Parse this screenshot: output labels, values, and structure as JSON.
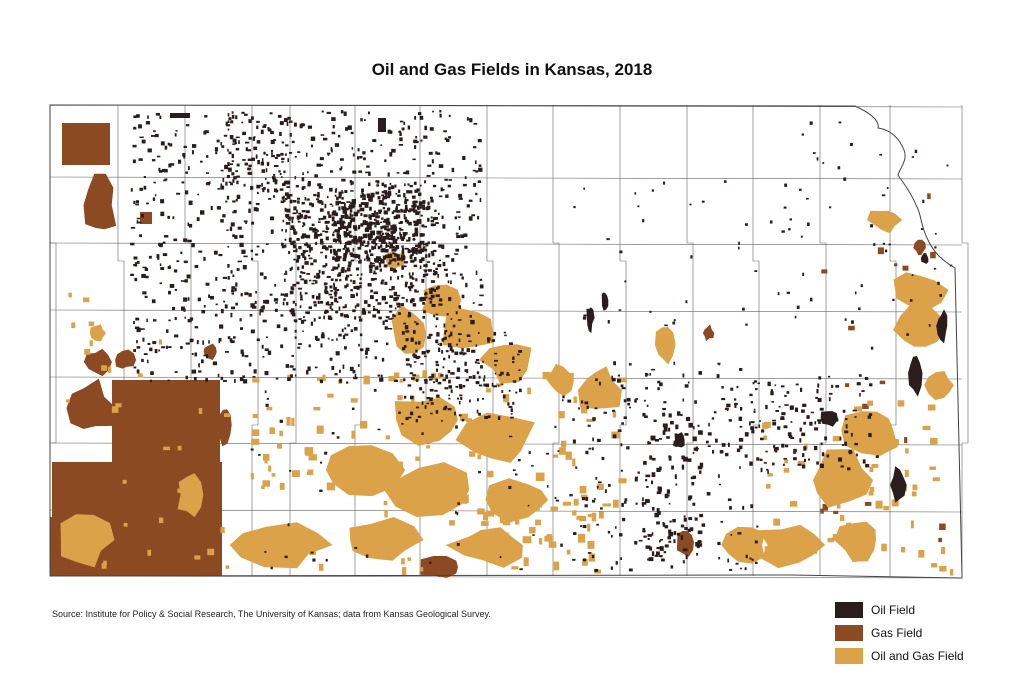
{
  "map": {
    "title": "Oil and Gas Fields in Kansas, 2018",
    "source": "Source: Institute for Policy & Social Research, The University of Kansas; data from Kansas Geological Survey.",
    "legend": [
      {
        "label": "Oil Field",
        "color": "#2b1d1d"
      },
      {
        "label": "Gas Field",
        "color": "#8b4a22"
      },
      {
        "label": "Oil and Gas Field",
        "color": "#dba24a"
      }
    ],
    "colors": {
      "county_border": "#666666",
      "state_border": "#444444",
      "background": "#ffffff"
    }
  }
}
